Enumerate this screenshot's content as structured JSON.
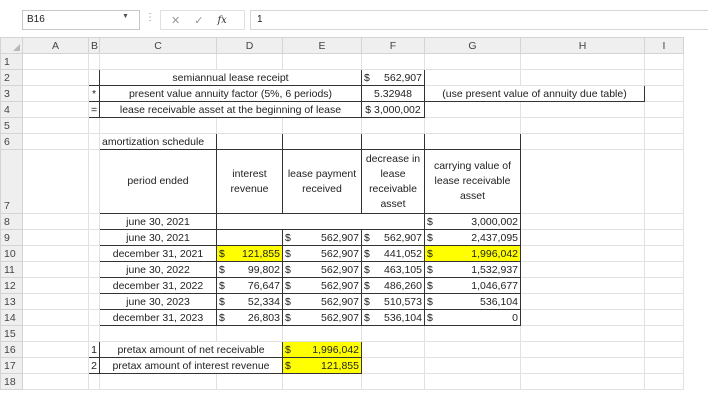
{
  "formula_bar": {
    "name_box": "B16",
    "cancel_icon": "✕",
    "enter_icon": "✓",
    "fx_label": "fx",
    "value": "1"
  },
  "columns": [
    "A",
    "B",
    "C",
    "D",
    "E",
    "F",
    "G",
    "H",
    "I"
  ],
  "rows": [
    "1",
    "2",
    "3",
    "4",
    "5",
    "6",
    "7",
    "8",
    "9",
    "10",
    "11",
    "12",
    "13",
    "14",
    "15",
    "16",
    "17",
    "18"
  ],
  "highlight_color": "#ffff00",
  "summary": [
    {
      "op": "",
      "label": "semiannual lease receipt",
      "cur": "$",
      "value": "562,907"
    },
    {
      "op": "*",
      "label": "present value annuity factor (5%, 6 periods)",
      "value": "5.32948",
      "note": "(use present value of annuity due table)"
    },
    {
      "op": "=",
      "label": "lease receivable asset at the beginning of lease",
      "value": "$ 3,000,002"
    }
  ],
  "schedule": {
    "title": "amortization schedule",
    "headers": [
      "period ended",
      "interest revenue",
      "lease payment received",
      "decrease in lease receivable asset",
      "carrying value of lease receivable asset"
    ],
    "rows": [
      {
        "period": "june 30, 2021",
        "interest": "",
        "payment": "",
        "decrease": "",
        "carrying": "3,000,002"
      },
      {
        "period": "june 30, 2021",
        "interest": "",
        "payment": "562,907",
        "decrease": "562,907",
        "carrying": "2,437,095"
      },
      {
        "period": "december 31, 2021",
        "interest": "121,855",
        "payment": "562,907",
        "decrease": "441,052",
        "carrying": "1,996,042"
      },
      {
        "period": "june 30, 2022",
        "interest": "99,802",
        "payment": "562,907",
        "decrease": "463,105",
        "carrying": "1,532,937"
      },
      {
        "period": "december 31, 2022",
        "interest": "76,647",
        "payment": "562,907",
        "decrease": "486,260",
        "carrying": "1,046,677"
      },
      {
        "period": "june 30, 2023",
        "interest": "52,334",
        "payment": "562,907",
        "decrease": "510,573",
        "carrying": "536,104"
      },
      {
        "period": "december 31, 2023",
        "interest": "26,803",
        "payment": "562,907",
        "decrease": "536,104",
        "carrying": "0"
      }
    ]
  },
  "answers": [
    {
      "num": "1",
      "label": "pretax amount of net receivable",
      "cur": "$",
      "value": "1,996,042"
    },
    {
      "num": "2",
      "label": "pretax amount of interest revenue",
      "cur": "$",
      "value": "121,855"
    }
  ],
  "currency_symbol": "$"
}
